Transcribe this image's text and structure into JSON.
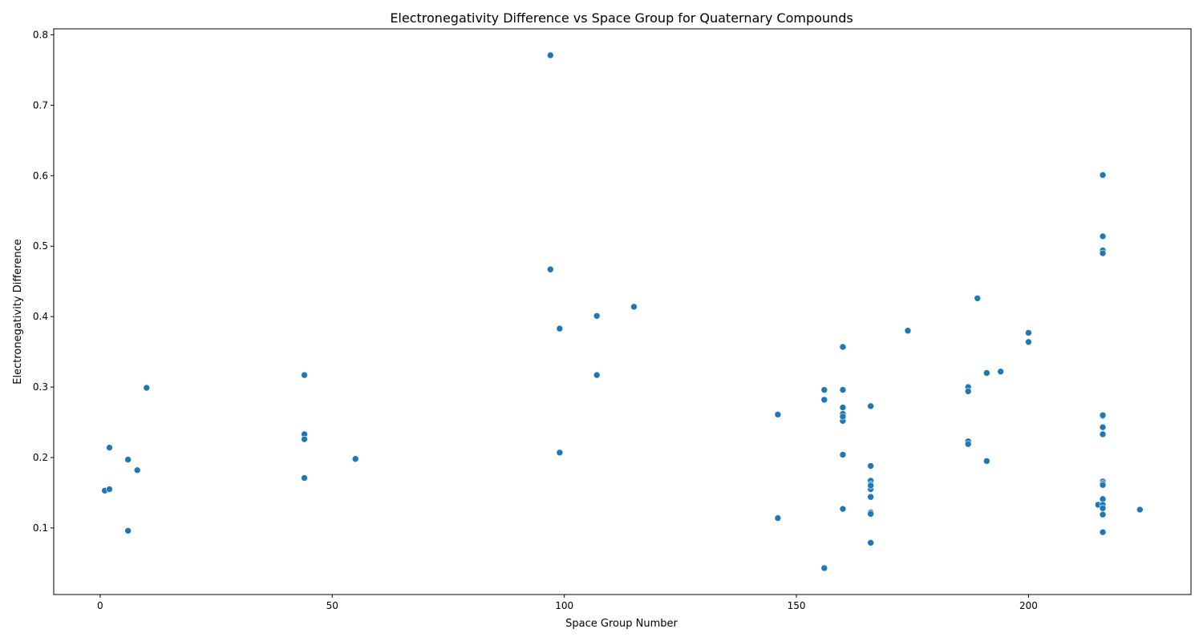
{
  "chart_data": {
    "type": "scatter",
    "title": "Electronegativity Difference vs Space Group for Quaternary Compounds",
    "xlabel": "Space Group Number",
    "ylabel": "Electronegativity Difference",
    "xlim": [
      -10,
      235
    ],
    "ylim": [
      0.0055,
      0.8085
    ],
    "xticks": [
      0,
      50,
      100,
      150,
      200
    ],
    "yticks": [
      0.1,
      0.2,
      0.3,
      0.4,
      0.5,
      0.6,
      0.7,
      0.8
    ],
    "grid": false,
    "legend": "none",
    "marker_color": "#1f77b4",
    "x": [
      97,
      97,
      99,
      99,
      107,
      107,
      115,
      1,
      2,
      2,
      6,
      6,
      8,
      10,
      44,
      44,
      44,
      44,
      55,
      146,
      146,
      156,
      156,
      156,
      160,
      160,
      160,
      160,
      160,
      160,
      160,
      160,
      160,
      166,
      166,
      166,
      166,
      166,
      166,
      166,
      166,
      166,
      166,
      174,
      187,
      187,
      187,
      187,
      189,
      191,
      191,
      194,
      200,
      200,
      215,
      216,
      216,
      216,
      216,
      216,
      216,
      216,
      216,
      216,
      216,
      216,
      216,
      216,
      216,
      216,
      216,
      224
    ],
    "y": [
      0.771,
      0.467,
      0.383,
      0.207,
      0.401,
      0.317,
      0.414,
      0.153,
      0.214,
      0.155,
      0.197,
      0.096,
      0.182,
      0.299,
      0.317,
      0.233,
      0.226,
      0.171,
      0.198,
      0.261,
      0.114,
      0.296,
      0.282,
      0.043,
      0.357,
      0.296,
      0.271,
      0.262,
      0.257,
      0.252,
      0.204,
      0.127,
      0.258,
      0.273,
      0.188,
      0.167,
      0.162,
      0.155,
      0.144,
      0.122,
      0.12,
      0.079,
      0.16,
      0.38,
      0.3,
      0.294,
      0.223,
      0.219,
      0.426,
      0.32,
      0.195,
      0.322,
      0.377,
      0.364,
      0.133,
      0.601,
      0.514,
      0.494,
      0.49,
      0.259,
      0.243,
      0.233,
      0.166,
      0.163,
      0.161,
      0.141,
      0.133,
      0.128,
      0.119,
      0.094,
      0.26,
      0.126
    ]
  }
}
